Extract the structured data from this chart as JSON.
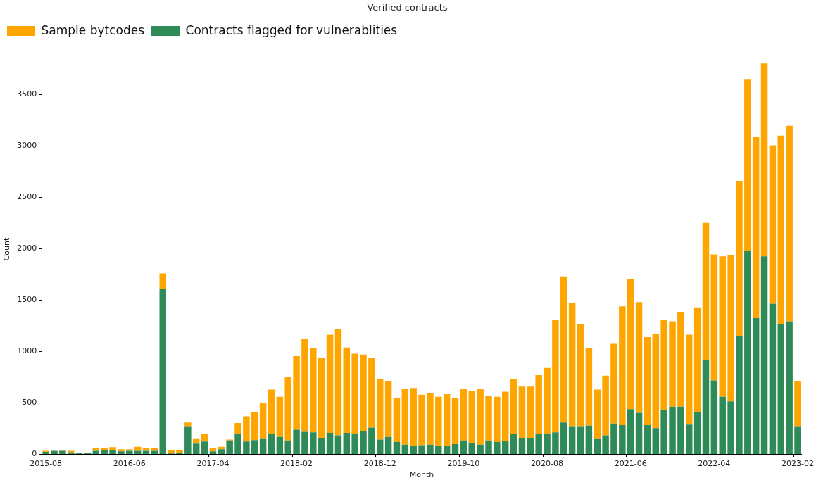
{
  "chart_data": {
    "type": "bar",
    "title": "Verified contracts",
    "xlabel": "Month",
    "ylabel": "Count",
    "categories": [
      "2015-08",
      null,
      null,
      null,
      null,
      null,
      null,
      null,
      null,
      null,
      "2016-06",
      null,
      null,
      null,
      null,
      null,
      null,
      null,
      null,
      null,
      "2017-04",
      null,
      null,
      null,
      null,
      null,
      null,
      null,
      null,
      null,
      "2018-02",
      null,
      null,
      null,
      null,
      null,
      null,
      null,
      null,
      null,
      "2018-12",
      null,
      null,
      null,
      null,
      null,
      null,
      null,
      null,
      null,
      "2019-10",
      null,
      null,
      null,
      null,
      null,
      null,
      null,
      null,
      null,
      "2020-08",
      null,
      null,
      null,
      null,
      null,
      null,
      null,
      null,
      null,
      "2021-06",
      null,
      null,
      null,
      null,
      null,
      null,
      null,
      null,
      null,
      "2022-04",
      null,
      null,
      null,
      null,
      null,
      null,
      null,
      null,
      null,
      "2023-02"
    ],
    "stacked": true,
    "series": [
      {
        "name": "Contracts flagged for vulnerablities",
        "color": "#2e8b57",
        "values": [
          25,
          35,
          35,
          20,
          18,
          18,
          35,
          40,
          45,
          30,
          35,
          35,
          35,
          35,
          1610,
          10,
          15,
          275,
          105,
          125,
          30,
          50,
          135,
          200,
          125,
          140,
          150,
          195,
          170,
          135,
          240,
          220,
          215,
          155,
          210,
          185,
          210,
          195,
          230,
          260,
          145,
          170,
          120,
          95,
          85,
          90,
          95,
          85,
          85,
          100,
          135,
          110,
          95,
          135,
          120,
          130,
          200,
          160,
          160,
          200,
          200,
          215,
          310,
          275,
          275,
          280,
          150,
          185,
          300,
          285,
          440,
          405,
          285,
          255,
          430,
          465,
          465,
          290,
          415,
          920,
          720,
          560,
          515,
          1150,
          1980,
          1325,
          1925,
          1465,
          1265,
          1295,
          275
        ]
      },
      {
        "name": "Sample bytcodes",
        "color": "#ffa500",
        "values": [
          10,
          null,
          10,
          15,
          null,
          null,
          25,
          25,
          25,
          20,
          15,
          40,
          25,
          30,
          150,
          35,
          30,
          35,
          45,
          70,
          30,
          25,
          10,
          105,
          245,
          270,
          350,
          435,
          390,
          620,
          715,
          905,
          820,
          780,
          955,
          1035,
          830,
          785,
          740,
          680,
          585,
          540,
          425,
          545,
          560,
          490,
          500,
          475,
          500,
          445,
          500,
          505,
          545,
          435,
          440,
          480,
          530,
          500,
          500,
          570,
          640,
          1095,
          1420,
          1200,
          990,
          750,
          480,
          580,
          775,
          1155,
          1265,
          1075,
          855,
          915,
          875,
          830,
          915,
          875,
          1015,
          1330,
          1225,
          1365,
          1420,
          1510,
          1670,
          1760,
          1875,
          1540,
          1835,
          1900,
          440
        ]
      }
    ],
    "ylim": [
      0,
      3990
    ],
    "yticks": [
      0,
      500,
      1000,
      1500,
      2000,
      2500,
      3000,
      3500
    ],
    "legend": "top left"
  }
}
